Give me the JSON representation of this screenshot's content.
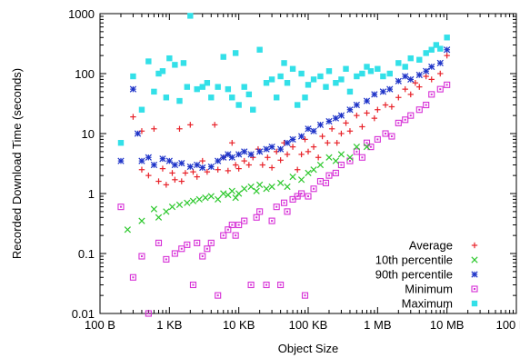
{
  "chart_data": {
    "type": "scatter",
    "title": "",
    "xlabel": "Object Size",
    "ylabel": "Recorded Download Time (seconds)",
    "x_scale": "log",
    "y_scale": "log",
    "xlim_bytes": [
      100,
      100000000
    ],
    "ylim_seconds": [
      0.01,
      1000
    ],
    "x_ticks": [
      {
        "value": 100,
        "label": "100 B"
      },
      {
        "value": 1000,
        "label": "1 KB"
      },
      {
        "value": 10000,
        "label": "10 KB"
      },
      {
        "value": 100000,
        "label": "100 KB"
      },
      {
        "value": 1000000,
        "label": "1 MB"
      },
      {
        "value": 10000000,
        "label": "10 MB"
      },
      {
        "value": 100000000,
        "label": "100 MB"
      }
    ],
    "y_ticks": [
      {
        "value": 0.01,
        "label": "0.01"
      },
      {
        "value": 0.1,
        "label": "0.1"
      },
      {
        "value": 1,
        "label": "1"
      },
      {
        "value": 10,
        "label": "10"
      },
      {
        "value": 100,
        "label": "100"
      },
      {
        "value": 1000,
        "label": "1000"
      }
    ],
    "grid": false,
    "legend_position": "bottom-right",
    "series": [
      {
        "name": "Average",
        "marker": "plus",
        "color": "#e8232a",
        "points": [
          [
            300,
            19
          ],
          [
            400,
            2.5
          ],
          [
            400,
            11
          ],
          [
            500,
            2
          ],
          [
            600,
            12
          ],
          [
            700,
            1.6
          ],
          [
            800,
            2.6
          ],
          [
            900,
            1.4
          ],
          [
            1100,
            2.2
          ],
          [
            1200,
            1.7
          ],
          [
            1400,
            12
          ],
          [
            1500,
            1.6
          ],
          [
            1700,
            2.2
          ],
          [
            2000,
            14
          ],
          [
            2200,
            2.3
          ],
          [
            2500,
            1.9
          ],
          [
            3000,
            3.5
          ],
          [
            3500,
            2.3
          ],
          [
            4500,
            14
          ],
          [
            5000,
            2.5
          ],
          [
            6000,
            4
          ],
          [
            7000,
            2.4
          ],
          [
            8000,
            7
          ],
          [
            9000,
            3
          ],
          [
            10000,
            2.6
          ],
          [
            12000,
            3.5
          ],
          [
            14000,
            3
          ],
          [
            16000,
            4
          ],
          [
            19000,
            5.5
          ],
          [
            22000,
            3
          ],
          [
            26000,
            4
          ],
          [
            30000,
            2.7
          ],
          [
            35000,
            5
          ],
          [
            40000,
            3.6
          ],
          [
            45000,
            7
          ],
          [
            50000,
            4.5
          ],
          [
            60000,
            6
          ],
          [
            70000,
            2.5
          ],
          [
            80000,
            4.5
          ],
          [
            90000,
            8
          ],
          [
            100000,
            5
          ],
          [
            120000,
            6
          ],
          [
            140000,
            4
          ],
          [
            160000,
            9
          ],
          [
            190000,
            7
          ],
          [
            220000,
            12
          ],
          [
            260000,
            7
          ],
          [
            300000,
            10
          ],
          [
            350000,
            15
          ],
          [
            400000,
            11
          ],
          [
            500000,
            20
          ],
          [
            600000,
            13
          ],
          [
            700000,
            22
          ],
          [
            900000,
            18
          ],
          [
            1000000,
            25
          ],
          [
            1300000,
            30
          ],
          [
            1600000,
            28
          ],
          [
            2000000,
            40
          ],
          [
            2500000,
            55
          ],
          [
            3000000,
            45
          ],
          [
            3500000,
            70
          ],
          [
            4000000,
            60
          ],
          [
            5000000,
            90
          ],
          [
            6000000,
            80
          ],
          [
            8000000,
            100
          ],
          [
            10000000,
            200
          ]
        ]
      },
      {
        "name": "10th percentile",
        "marker": "cross",
        "color": "#2ec82e",
        "points": [
          [
            250,
            0.25
          ],
          [
            400,
            0.35
          ],
          [
            600,
            0.55
          ],
          [
            700,
            0.4
          ],
          [
            900,
            0.5
          ],
          [
            1100,
            0.6
          ],
          [
            1400,
            0.65
          ],
          [
            1800,
            0.7
          ],
          [
            2200,
            0.75
          ],
          [
            2700,
            0.8
          ],
          [
            3300,
            0.85
          ],
          [
            4000,
            0.9
          ],
          [
            5000,
            0.8
          ],
          [
            6000,
            1
          ],
          [
            7000,
            0.95
          ],
          [
            8000,
            1.1
          ],
          [
            9000,
            0.85
          ],
          [
            10000,
            1
          ],
          [
            12000,
            1.2
          ],
          [
            15000,
            1.3
          ],
          [
            18000,
            1.1
          ],
          [
            20000,
            1.4
          ],
          [
            25000,
            1.2
          ],
          [
            30000,
            1.3
          ],
          [
            40000,
            1.5
          ],
          [
            50000,
            1.3
          ],
          [
            60000,
            1.9
          ],
          [
            80000,
            1.7
          ],
          [
            100000,
            2.2
          ],
          [
            120000,
            2.5
          ],
          [
            150000,
            3
          ],
          [
            200000,
            4
          ],
          [
            250000,
            3.5
          ],
          [
            300000,
            4.5
          ],
          [
            400000,
            4
          ],
          [
            500000,
            6
          ],
          [
            700000,
            6
          ]
        ]
      },
      {
        "name": "90th percentile",
        "marker": "star",
        "color": "#1f34c8",
        "points": [
          [
            200,
            3.5
          ],
          [
            300,
            55
          ],
          [
            350,
            10
          ],
          [
            400,
            3.5
          ],
          [
            500,
            4
          ],
          [
            600,
            3
          ],
          [
            800,
            3.8
          ],
          [
            1000,
            3.5
          ],
          [
            1200,
            3
          ],
          [
            1500,
            3.2
          ],
          [
            2000,
            2.8
          ],
          [
            2500,
            3
          ],
          [
            3000,
            2.7
          ],
          [
            4000,
            2.8
          ],
          [
            5000,
            3.5
          ],
          [
            6000,
            4
          ],
          [
            7000,
            4.5
          ],
          [
            8000,
            4
          ],
          [
            10000,
            4.5
          ],
          [
            12000,
            5
          ],
          [
            15000,
            4.5
          ],
          [
            20000,
            5
          ],
          [
            25000,
            5.5
          ],
          [
            30000,
            6
          ],
          [
            40000,
            5.5
          ],
          [
            50000,
            7
          ],
          [
            60000,
            8
          ],
          [
            80000,
            9
          ],
          [
            100000,
            12
          ],
          [
            120000,
            11
          ],
          [
            150000,
            14
          ],
          [
            200000,
            16
          ],
          [
            250000,
            18
          ],
          [
            300000,
            20
          ],
          [
            400000,
            25
          ],
          [
            500000,
            30
          ],
          [
            700000,
            35
          ],
          [
            900000,
            45
          ],
          [
            1200000,
            50
          ],
          [
            1500000,
            55
          ],
          [
            2000000,
            75
          ],
          [
            2500000,
            90
          ],
          [
            3000000,
            80
          ],
          [
            4000000,
            95
          ],
          [
            5000000,
            110
          ],
          [
            6000000,
            130
          ],
          [
            8000000,
            150
          ],
          [
            10000000,
            250
          ]
        ]
      },
      {
        "name": "Minimum",
        "marker": "box",
        "color": "#d62fd6",
        "points": [
          [
            200,
            0.6
          ],
          [
            300,
            0.04
          ],
          [
            400,
            0.09
          ],
          [
            500,
            0.01
          ],
          [
            700,
            0.15
          ],
          [
            900,
            0.08
          ],
          [
            1200,
            0.1
          ],
          [
            1500,
            0.12
          ],
          [
            1800,
            0.14
          ],
          [
            2200,
            0.03
          ],
          [
            2500,
            0.15
          ],
          [
            3000,
            0.09
          ],
          [
            3500,
            0.12
          ],
          [
            4000,
            0.15
          ],
          [
            5000,
            0.02
          ],
          [
            6000,
            0.2
          ],
          [
            7000,
            0.25
          ],
          [
            8000,
            0.3
          ],
          [
            9000,
            0.2
          ],
          [
            10000,
            0.3
          ],
          [
            12000,
            0.35
          ],
          [
            15000,
            0.03
          ],
          [
            18000,
            0.4
          ],
          [
            20000,
            0.5
          ],
          [
            25000,
            0.03
          ],
          [
            30000,
            0.35
          ],
          [
            35000,
            0.6
          ],
          [
            40000,
            0.03
          ],
          [
            45000,
            0.7
          ],
          [
            50000,
            0.5
          ],
          [
            60000,
            0.8
          ],
          [
            70000,
            0.9
          ],
          [
            80000,
            1
          ],
          [
            90000,
            0.02
          ],
          [
            100000,
            0.9
          ],
          [
            120000,
            1.2
          ],
          [
            150000,
            1.6
          ],
          [
            180000,
            1.5
          ],
          [
            200000,
            2
          ],
          [
            250000,
            2.2
          ],
          [
            300000,
            3
          ],
          [
            400000,
            3.5
          ],
          [
            500000,
            5
          ],
          [
            600000,
            4
          ],
          [
            700000,
            7
          ],
          [
            800000,
            6
          ],
          [
            1000000,
            8
          ],
          [
            1300000,
            10
          ],
          [
            1600000,
            9
          ],
          [
            2000000,
            15
          ],
          [
            2500000,
            17
          ],
          [
            3000000,
            20
          ],
          [
            4000000,
            25
          ],
          [
            5000000,
            30
          ],
          [
            6000000,
            45
          ],
          [
            8000000,
            55
          ],
          [
            10000000,
            65
          ]
        ]
      },
      {
        "name": "Maximum",
        "marker": "filled-box",
        "color": "#33e0e8",
        "points": [
          [
            200,
            7
          ],
          [
            300,
            90
          ],
          [
            400,
            25
          ],
          [
            500,
            160
          ],
          [
            600,
            50
          ],
          [
            700,
            100
          ],
          [
            800,
            110
          ],
          [
            900,
            40
          ],
          [
            1000,
            180
          ],
          [
            1200,
            140
          ],
          [
            1400,
            35
          ],
          [
            1600,
            150
          ],
          [
            1800,
            60
          ],
          [
            2000,
            920
          ],
          [
            2500,
            55
          ],
          [
            3000,
            60
          ],
          [
            3500,
            70
          ],
          [
            4000,
            40
          ],
          [
            5000,
            60
          ],
          [
            6000,
            190
          ],
          [
            7000,
            55
          ],
          [
            8000,
            40
          ],
          [
            9000,
            220
          ],
          [
            10000,
            30
          ],
          [
            12000,
            60
          ],
          [
            14000,
            45
          ],
          [
            16000,
            25
          ],
          [
            20000,
            250
          ],
          [
            25000,
            70
          ],
          [
            30000,
            80
          ],
          [
            35000,
            40
          ],
          [
            40000,
            90
          ],
          [
            45000,
            150
          ],
          [
            50000,
            70
          ],
          [
            60000,
            120
          ],
          [
            70000,
            30
          ],
          [
            80000,
            100
          ],
          [
            90000,
            40
          ],
          [
            100000,
            65
          ],
          [
            120000,
            80
          ],
          [
            150000,
            90
          ],
          [
            180000,
            60
          ],
          [
            200000,
            110
          ],
          [
            250000,
            70
          ],
          [
            300000,
            80
          ],
          [
            350000,
            120
          ],
          [
            400000,
            50
          ],
          [
            500000,
            90
          ],
          [
            600000,
            100
          ],
          [
            700000,
            130
          ],
          [
            800000,
            110
          ],
          [
            1000000,
            120
          ],
          [
            1200000,
            90
          ],
          [
            1500000,
            100
          ],
          [
            2000000,
            150
          ],
          [
            2500000,
            130
          ],
          [
            3000000,
            180
          ],
          [
            4000000,
            170
          ],
          [
            5000000,
            220
          ],
          [
            6000000,
            250
          ],
          [
            7000000,
            300
          ],
          [
            8000000,
            260
          ],
          [
            10000000,
            400
          ]
        ]
      }
    ]
  }
}
